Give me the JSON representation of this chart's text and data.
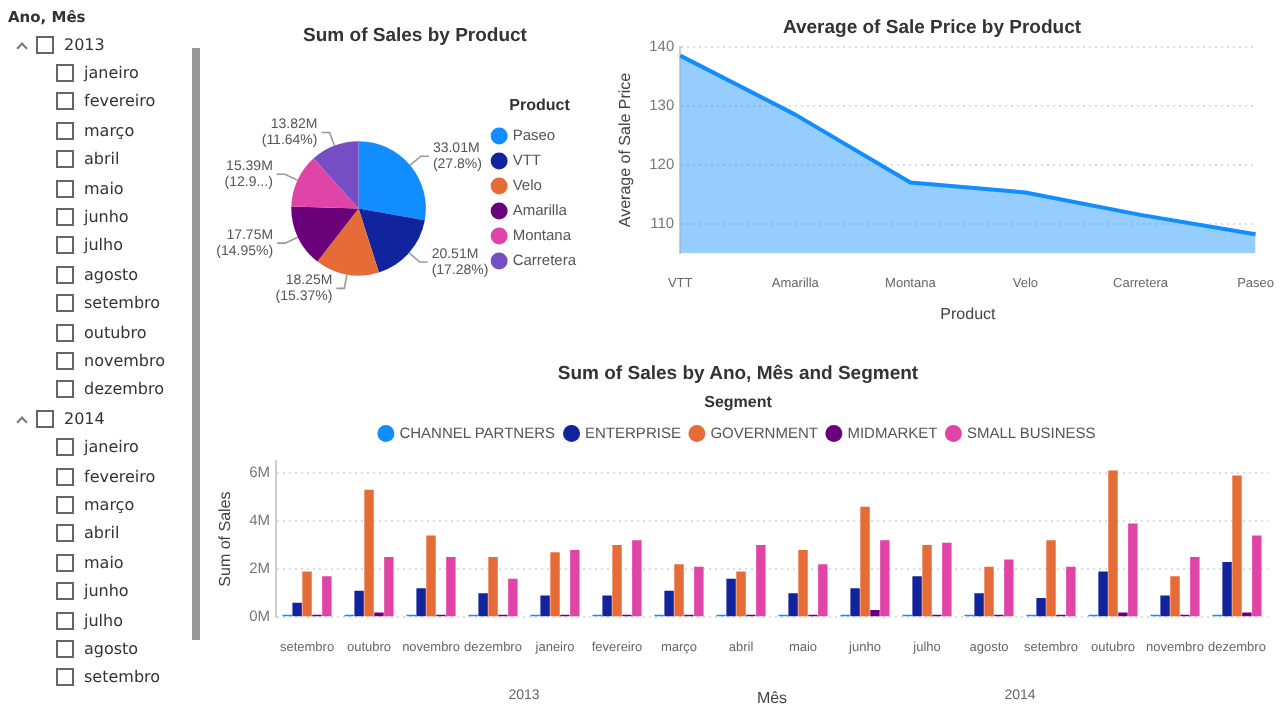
{
  "chart_data": [
    {
      "type": "other",
      "title": "Ano, Mês",
      "annotations": [
        "2013",
        "janeiro",
        "fevereiro",
        "março",
        "abril",
        "maio",
        "junho",
        "julho",
        "agosto",
        "setembro",
        "outubro",
        "novembro",
        "dezembro",
        "2014",
        "janeiro",
        "fevereiro",
        "março",
        "abril",
        "maio",
        "junho",
        "julho",
        "agosto",
        "setembro"
      ]
    },
    {
      "type": "pie",
      "title": "Sum of Sales by Product",
      "categories": [
        "Paseo",
        "VTT",
        "Velo",
        "Amarilla",
        "Montana",
        "Carretera"
      ],
      "values": [
        27.8,
        17.28,
        15.37,
        14.95,
        12.9,
        11.64
      ],
      "colors": [
        "#118dff",
        "#12239e",
        "#e66c37",
        "#6b007b",
        "#e044a7",
        "#744ec2"
      ],
      "value_labels": [
        "33.01M (27.8%)",
        "20.51M (17.28%)",
        "18.25M (15.37%)",
        "17.75M (14.95%)",
        "15.39M (12.9...)",
        "13.82M (11.64%)"
      ],
      "legend": "right",
      "legend_title": "Product"
    },
    {
      "type": "area",
      "title": "Average of Sale Price by Product",
      "xlabel": "Product",
      "ylabel": "Average of Sale Price",
      "categories": [
        "VTT",
        "Amarilla",
        "Montana",
        "Velo",
        "Carretera",
        "Paseo"
      ],
      "values": [
        138.5,
        128.5,
        117,
        115.3,
        111.5,
        108.2
      ],
      "color": "#118dff",
      "ylim": [
        105,
        140
      ],
      "yticks": [
        110,
        120,
        130,
        140
      ],
      "grid": "y"
    },
    {
      "type": "bar",
      "title": "Sum of Sales by Ano, Mês and Segment",
      "xlabel": "Mês",
      "ylabel": "Sum of Sales",
      "legend": "top",
      "legend_title": "Segment",
      "categories": [
        "setembro",
        "outubro",
        "novembro",
        "dezembro",
        "janeiro",
        "fevereiro",
        "março",
        "abril",
        "maio",
        "junho",
        "julho",
        "agosto",
        "setembro",
        "outubro",
        "novembro",
        "dezembro"
      ],
      "series": [
        {
          "name": "CHANNEL PARTNERS",
          "color": "#118dff",
          "values": [
            0.1,
            0.1,
            0.1,
            0.1,
            0.1,
            0.1,
            0.1,
            0.1,
            0.1,
            0.1,
            0.1,
            0.1,
            0.1,
            0.1,
            0.1,
            0.1
          ]
        },
        {
          "name": "ENTERPRISE",
          "color": "#12239e",
          "values": [
            0.6,
            1.1,
            1.2,
            1.0,
            0.9,
            0.9,
            1.1,
            1.6,
            1.0,
            1.2,
            1.7,
            1.0,
            0.8,
            1.9,
            0.9,
            2.3
          ]
        },
        {
          "name": "GOVERNMENT",
          "color": "#e66c37",
          "values": [
            1.9,
            5.3,
            3.4,
            2.5,
            2.7,
            3.0,
            2.2,
            1.9,
            2.8,
            4.6,
            3.0,
            2.1,
            3.2,
            6.1,
            1.7,
            5.9
          ]
        },
        {
          "name": "MIDMARKET",
          "color": "#6b007b",
          "values": [
            0.1,
            0.2,
            0.1,
            0.1,
            0.1,
            0.1,
            0.1,
            0.1,
            0.1,
            0.3,
            0.1,
            0.1,
            0.1,
            0.2,
            0.1,
            0.2
          ]
        },
        {
          "name": "SMALL BUSINESS",
          "color": "#e044a7",
          "values": [
            1.7,
            2.5,
            2.5,
            1.6,
            2.8,
            3.2,
            2.1,
            3.0,
            2.2,
            3.2,
            3.1,
            2.4,
            2.1,
            3.9,
            2.5,
            3.4
          ]
        }
      ],
      "ylim": [
        0,
        6.5
      ],
      "yticks": [
        {
          "value": 0,
          "label": "0M"
        },
        {
          "value": 2,
          "label": "2M"
        },
        {
          "value": 4,
          "label": "4M"
        },
        {
          "value": 6,
          "label": "6M"
        }
      ],
      "grid": "y",
      "annotations": [
        "2013",
        "2014"
      ]
    }
  ]
}
